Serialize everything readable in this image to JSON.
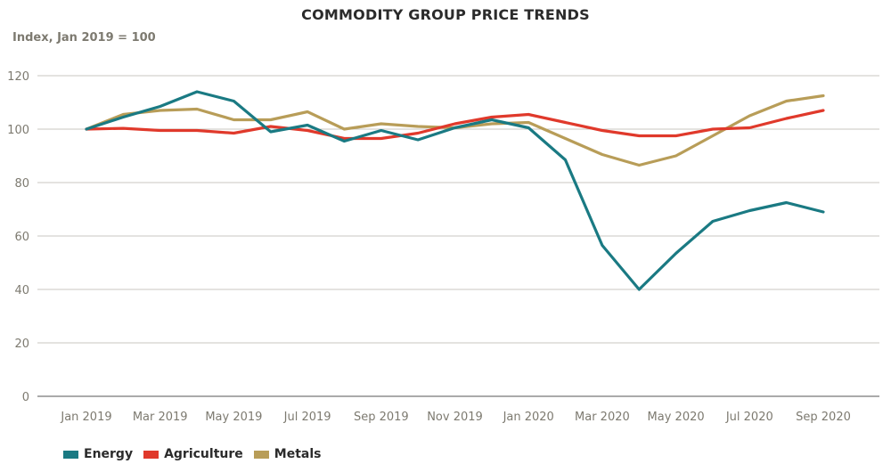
{
  "chart_data": {
    "type": "line",
    "title": "COMMODITY GROUP PRICE TRENDS",
    "subtitle": "Index, Jan 2019 = 100",
    "xlabel": "",
    "ylabel": "Index, Jan 2019 = 100",
    "ylim": [
      0,
      120
    ],
    "yticks": [
      "0",
      "20",
      "40",
      "60",
      "80",
      "100",
      "120"
    ],
    "ytick_values": [
      0,
      20,
      40,
      60,
      80,
      100,
      120
    ],
    "grid": true,
    "legend_position": "bottom-left",
    "x": [
      "Jan 2019",
      "Feb 2019",
      "Mar 2019",
      "Apr 2019",
      "May 2019",
      "Jun 2019",
      "Jul 2019",
      "Aug 2019",
      "Sep 2019",
      "Oct 2019",
      "Nov 2019",
      "Dec 2019",
      "Jan 2020",
      "Feb 2020",
      "Mar 2020",
      "Apr 2020",
      "May 2020",
      "Jun 2020",
      "Jul 2020",
      "Aug 2020",
      "Sep 2020"
    ],
    "xtick_labels": [
      "Jan 2019",
      "Mar 2019",
      "May 2019",
      "Jul 2019",
      "Sep 2019",
      "Nov 2019",
      "Jan 2020",
      "Mar 2020",
      "May 2020",
      "Jul 2020",
      "Sep 2020"
    ],
    "xtick_indices": [
      0,
      2,
      4,
      6,
      8,
      10,
      12,
      14,
      16,
      18,
      20
    ],
    "series": [
      {
        "name": "Energy",
        "color": "#1a7a83",
        "values": [
          100,
          104.5,
          108.5,
          114,
          110.5,
          99,
          101.5,
          95.5,
          99.5,
          96,
          100.5,
          103.5,
          100.5,
          88.5,
          56.5,
          40,
          53.5,
          65.5,
          69.5,
          72.5,
          69
        ]
      },
      {
        "name": "Agriculture",
        "color": "#e0392b",
        "values": [
          100,
          100.3,
          99.5,
          99.5,
          98.5,
          101,
          99.5,
          96.5,
          96.5,
          98.5,
          102,
          104.5,
          105.5,
          102.5,
          99.5,
          97.5,
          97.5,
          100,
          100.5,
          104,
          107
        ]
      },
      {
        "name": "Metals",
        "color": "#b89d58",
        "values": [
          100,
          105.5,
          107,
          107.5,
          103.5,
          103.5,
          106.5,
          100,
          102,
          101,
          100.5,
          102,
          102.5,
          96.5,
          90.5,
          86.5,
          90,
          97.5,
          105,
          110.5,
          112.5
        ]
      }
    ]
  },
  "colors": {
    "gridline": "#c9c7c0",
    "axis_baseline": "#8e8e8e",
    "tick_text": "#7d7a70",
    "title_text": "#2b2b2b"
  }
}
